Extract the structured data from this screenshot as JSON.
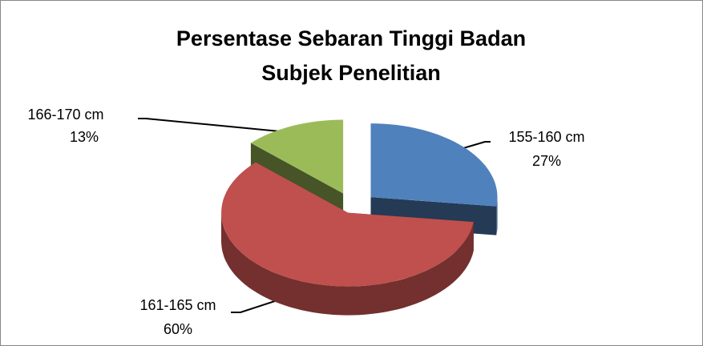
{
  "chart_data": {
    "type": "pie3d",
    "title": [
      "Persentase Sebaran Tinggi Badan",
      "Subjek Penelitian"
    ],
    "categories": [
      "155-160 cm",
      "161-165 cm",
      "166-170 cm"
    ],
    "values": [
      27,
      60,
      13
    ],
    "value_labels": [
      "27%",
      "60%",
      "13%"
    ],
    "colors": [
      "#4f81bd",
      "#c0504d",
      "#9bbb59"
    ]
  }
}
